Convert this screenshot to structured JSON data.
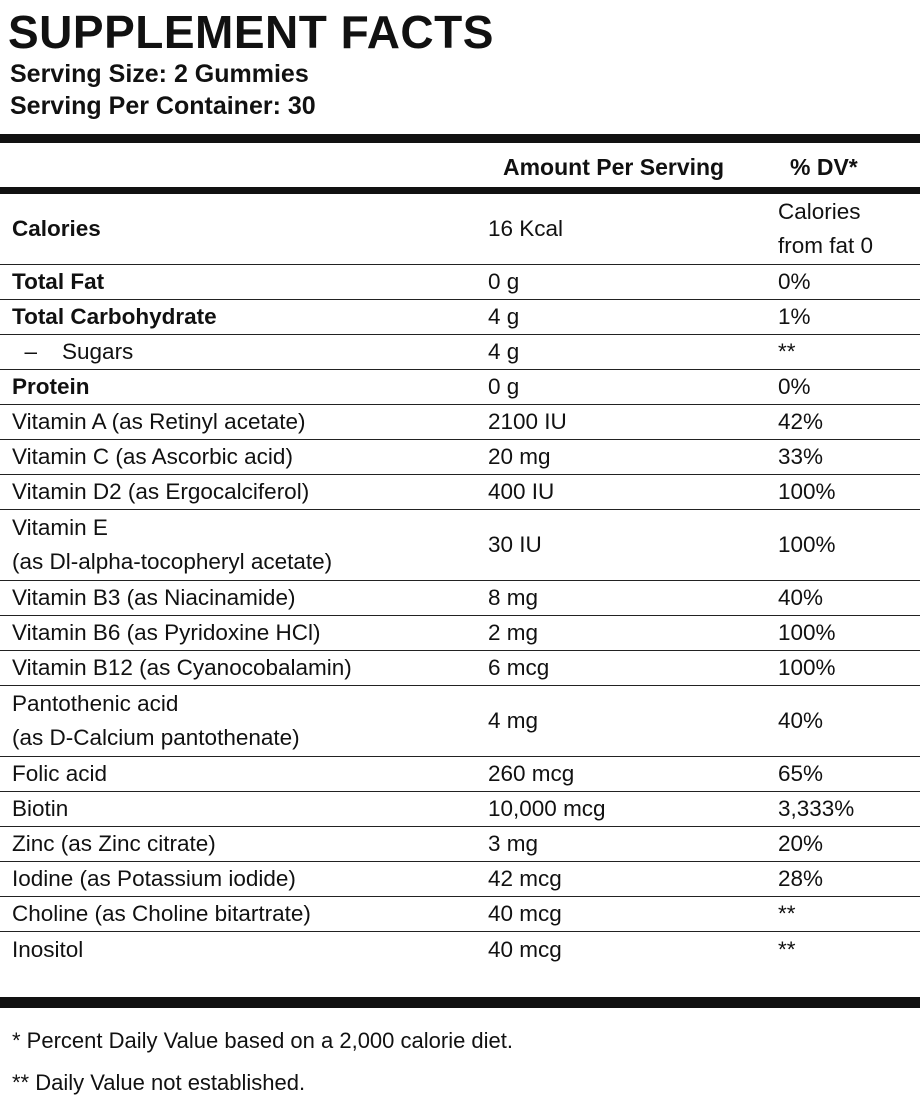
{
  "header": {
    "title": "SUPPLEMENT FACTS",
    "serving_size": "Serving Size: 2 Gummies",
    "servings_per_container": "Serving Per Container: 30"
  },
  "table": {
    "columns": [
      "Amount Per Serving",
      "% DV*"
    ],
    "rows": [
      {
        "name": [
          "Calories"
        ],
        "amount": "16 Kcal",
        "dv": [
          "Calories",
          "from fat 0"
        ],
        "bold": true
      },
      {
        "name": [
          "Total Fat"
        ],
        "amount": "0 g",
        "dv": [
          "0%"
        ],
        "bold": true
      },
      {
        "name": [
          "Total Carbohydrate"
        ],
        "amount": "4 g",
        "dv": [
          "1%"
        ],
        "bold": true
      },
      {
        "name": [
          "  –    Sugars"
        ],
        "amount": "4 g",
        "dv": [
          "**"
        ]
      },
      {
        "name": [
          "Protein"
        ],
        "amount": "0 g",
        "dv": [
          "0%"
        ],
        "bold": true
      },
      {
        "name": [
          "Vitamin A (as Retinyl acetate)"
        ],
        "amount": "2100 IU",
        "dv": [
          "42%"
        ]
      },
      {
        "name": [
          "Vitamin C (as Ascorbic acid)"
        ],
        "amount": "20 mg",
        "dv": [
          "33%"
        ]
      },
      {
        "name": [
          "Vitamin D2 (as Ergocalciferol)"
        ],
        "amount": "400 IU",
        "dv": [
          "100%"
        ]
      },
      {
        "name": [
          "Vitamin E",
          "(as Dl-alpha-tocopheryl acetate)"
        ],
        "amount": "30 IU",
        "dv": [
          "100%"
        ]
      },
      {
        "name": [
          "Vitamin B3 (as Niacinamide)"
        ],
        "amount": "8 mg",
        "dv": [
          "40%"
        ]
      },
      {
        "name": [
          "Vitamin B6 (as Pyridoxine HCl)"
        ],
        "amount": "2 mg",
        "dv": [
          "100%"
        ]
      },
      {
        "name": [
          "Vitamin B12 (as Cyanocobalamin)"
        ],
        "amount": "6 mcg",
        "dv": [
          "100%"
        ]
      },
      {
        "name": [
          "Pantothenic acid",
          "(as D-Calcium pantothenate)"
        ],
        "amount": "4 mg",
        "dv": [
          "40%"
        ]
      },
      {
        "name": [
          "Folic acid"
        ],
        "amount": "260 mcg",
        "dv": [
          "65%"
        ]
      },
      {
        "name": [
          "Biotin"
        ],
        "amount": "10,000 mcg",
        "dv": [
          "3,333%"
        ]
      },
      {
        "name": [
          "Zinc (as Zinc citrate)"
        ],
        "amount": "3 mg",
        "dv": [
          "20%"
        ]
      },
      {
        "name": [
          "Iodine (as Potassium iodide)"
        ],
        "amount": "42 mcg",
        "dv": [
          "28%"
        ]
      },
      {
        "name": [
          "Choline (as Choline bitartrate)"
        ],
        "amount": "40 mcg",
        "dv": [
          "**"
        ]
      },
      {
        "name": [
          "Inositol"
        ],
        "amount": "40 mcg",
        "dv": [
          "**"
        ]
      }
    ]
  },
  "footnotes": [
    "* Percent Daily Value based on a 2,000 calorie diet.",
    "** Daily Value not established."
  ]
}
